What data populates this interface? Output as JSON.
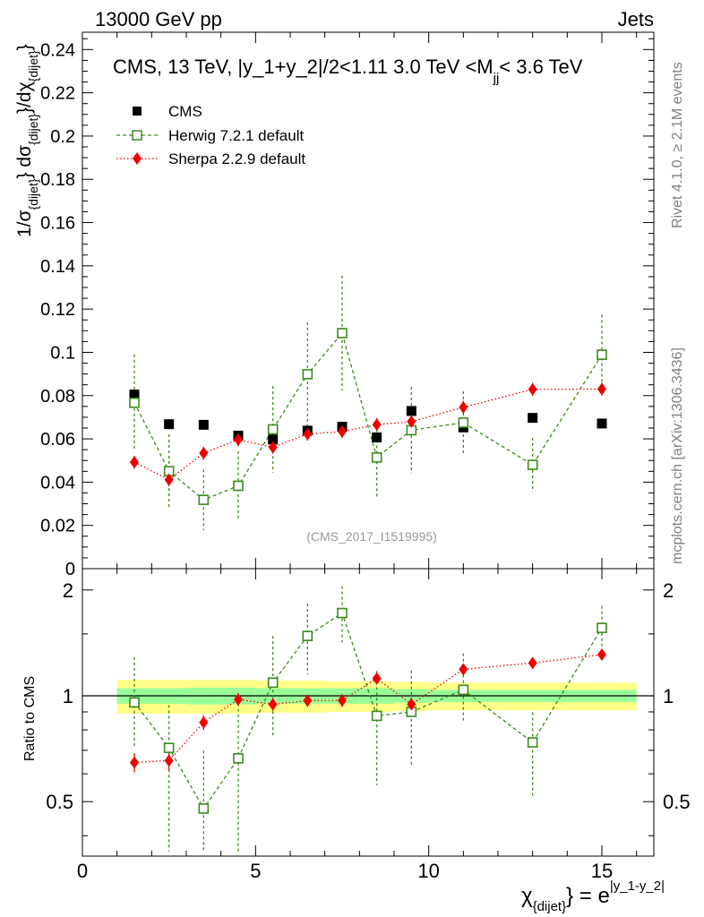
{
  "header": {
    "left": "13000 GeV pp",
    "right": "Jets"
  },
  "side_labels": {
    "rivet": "Rivet 4.1.0, ≥ 2.1M events",
    "mcplots": "mcplots.cern.ch [arXiv:1306.3436]"
  },
  "colors": {
    "cms": "#000000",
    "herwig": "#3a8a1e",
    "sherpa": "#ee0000",
    "band_inner": "#99ff99",
    "band_outer": "#ffff88",
    "watermark": "#999999"
  },
  "chart_data": [
    {
      "type": "scatter",
      "panel": "main",
      "title": "CMS, 13 TeV, |y_1+y_2|/2<1.11 3.0 TeV <M_jj< 3.6 TeV",
      "title_main": "CMS, 13 TeV, |y_1+y_2|/2<1.11 3.0 TeV <M",
      "title_sub": "jj",
      "title_tail": "< 3.6 TeV",
      "ylabel": "1/σ_{dijet} dσ_{dijet}/dχ_{dijet}",
      "watermark": "(CMS_2017_I1519995)",
      "xlim": [
        0,
        16.5
      ],
      "ylim": [
        0,
        0.248
      ],
      "yticks": [
        0,
        0.02,
        0.04,
        0.06,
        0.08,
        0.1,
        0.12,
        0.14,
        0.16,
        0.18,
        0.2,
        0.22,
        0.24
      ],
      "ytick_labels": [
        "0",
        "0.02",
        "0.04",
        "0.06",
        "0.08",
        "0.1",
        "0.12",
        "0.14",
        "0.16",
        "0.18",
        "0.2",
        "0.22",
        "0.24"
      ],
      "legend_position": "top-left",
      "legend": [
        "CMS",
        "Herwig 7.2.1 default",
        "Sherpa 2.2.9 default"
      ],
      "x": [
        1.5,
        2.5,
        3.5,
        4.5,
        5.5,
        6.5,
        7.5,
        8.5,
        9.5,
        11,
        13,
        15
      ],
      "series": [
        {
          "name": "CMS",
          "marker": "filled-square",
          "values": [
            0.0805,
            0.0668,
            0.0665,
            0.0615,
            0.0597,
            0.0638,
            0.0656,
            0.0607,
            0.0729,
            0.0653,
            0.0697,
            0.0671
          ]
        },
        {
          "name": "Herwig 7.2.1 default",
          "marker": "open-square",
          "line": "dashed",
          "values": [
            0.0767,
            0.0451,
            0.0318,
            0.0383,
            0.0644,
            0.0899,
            0.1089,
            0.0514,
            0.064,
            0.0675,
            0.048,
            0.0989
          ],
          "errors": [
            0.0223,
            0.017,
            0.014,
            0.016,
            0.02,
            0.024,
            0.0265,
            0.018,
            0.02,
            0.0145,
            0.0125,
            0.0185
          ]
        },
        {
          "name": "Sherpa 2.2.9 default",
          "marker": "filled-diamond",
          "line": "dotted",
          "values": [
            0.0492,
            0.0411,
            0.0534,
            0.0596,
            0.0561,
            0.0622,
            0.0634,
            0.0666,
            0.068,
            0.0746,
            0.0829,
            0.083
          ],
          "errors": [
            0.003,
            0.003,
            0.003,
            0.003,
            0.003,
            0.003,
            0.003,
            0.003,
            0.003,
            0.003,
            0.003,
            0.003
          ]
        }
      ]
    },
    {
      "type": "scatter",
      "panel": "ratio",
      "ylabel": "Ratio to CMS",
      "xlabel": "χ_{dijet} = e^{|y_1-y_2|}",
      "xlabel_main": "χ",
      "xlabel_sub": "{dijet}",
      "xlabel_eq": "} = e",
      "xlabel_sup": "|y_1-y_2|",
      "xlim": [
        0,
        16.5
      ],
      "ylim": [
        0.35,
        2.3
      ],
      "xticks": [
        0,
        5,
        10,
        15
      ],
      "xtick_labels": [
        "0",
        "5",
        "10",
        "15"
      ],
      "yticks": [
        0.5,
        1,
        2
      ],
      "ytick_labels": [
        "0.5",
        "1",
        "2"
      ],
      "reference_line": 1,
      "band_edges": [
        1,
        2,
        3,
        4,
        5,
        6,
        7,
        8,
        9,
        10,
        12,
        14,
        16
      ],
      "band_inner": [
        0.05,
        0.05,
        0.055,
        0.055,
        0.05,
        0.05,
        0.05,
        0.05,
        0.045,
        0.04,
        0.04,
        0.04
      ],
      "band_outer": [
        0.11,
        0.11,
        0.11,
        0.11,
        0.105,
        0.105,
        0.1,
        0.1,
        0.095,
        0.09,
        0.09,
        0.09
      ],
      "x": [
        1.5,
        2.5,
        3.5,
        4.5,
        5.5,
        6.5,
        7.5,
        8.5,
        9.5,
        11,
        13,
        15
      ],
      "series": [
        {
          "name": "Herwig 7.2.1 default",
          "values": [
            0.958,
            0.711,
            0.478,
            0.664,
            1.09,
            1.48,
            1.72,
            0.877,
            0.9,
            1.04,
            0.737,
            1.56
          ],
          "errors_up": [
            0.33,
            0.23,
            0.22,
            0.32,
            0.39,
            0.35,
            0.33,
            0.3,
            0.28,
            0.28,
            0.16,
            0.24
          ],
          "errors_down": [
            0.24,
            0.35,
            0.2,
            0.35,
            0.32,
            0.33,
            0.3,
            0.32,
            0.27,
            0.2,
            0.22,
            0.22
          ]
        },
        {
          "name": "Sherpa 2.2.9 default",
          "values": [
            0.646,
            0.654,
            0.84,
            0.977,
            0.946,
            0.969,
            0.97,
            1.12,
            0.946,
            1.19,
            1.24,
            1.31
          ],
          "errors_up": [
            0.04,
            0.04,
            0.04,
            0.04,
            0.04,
            0.04,
            0.04,
            0.04,
            0.04,
            0.04,
            0.04,
            0.04
          ],
          "errors_down": [
            0.04,
            0.04,
            0.04,
            0.04,
            0.04,
            0.04,
            0.04,
            0.04,
            0.04,
            0.04,
            0.04,
            0.04
          ]
        }
      ]
    }
  ]
}
